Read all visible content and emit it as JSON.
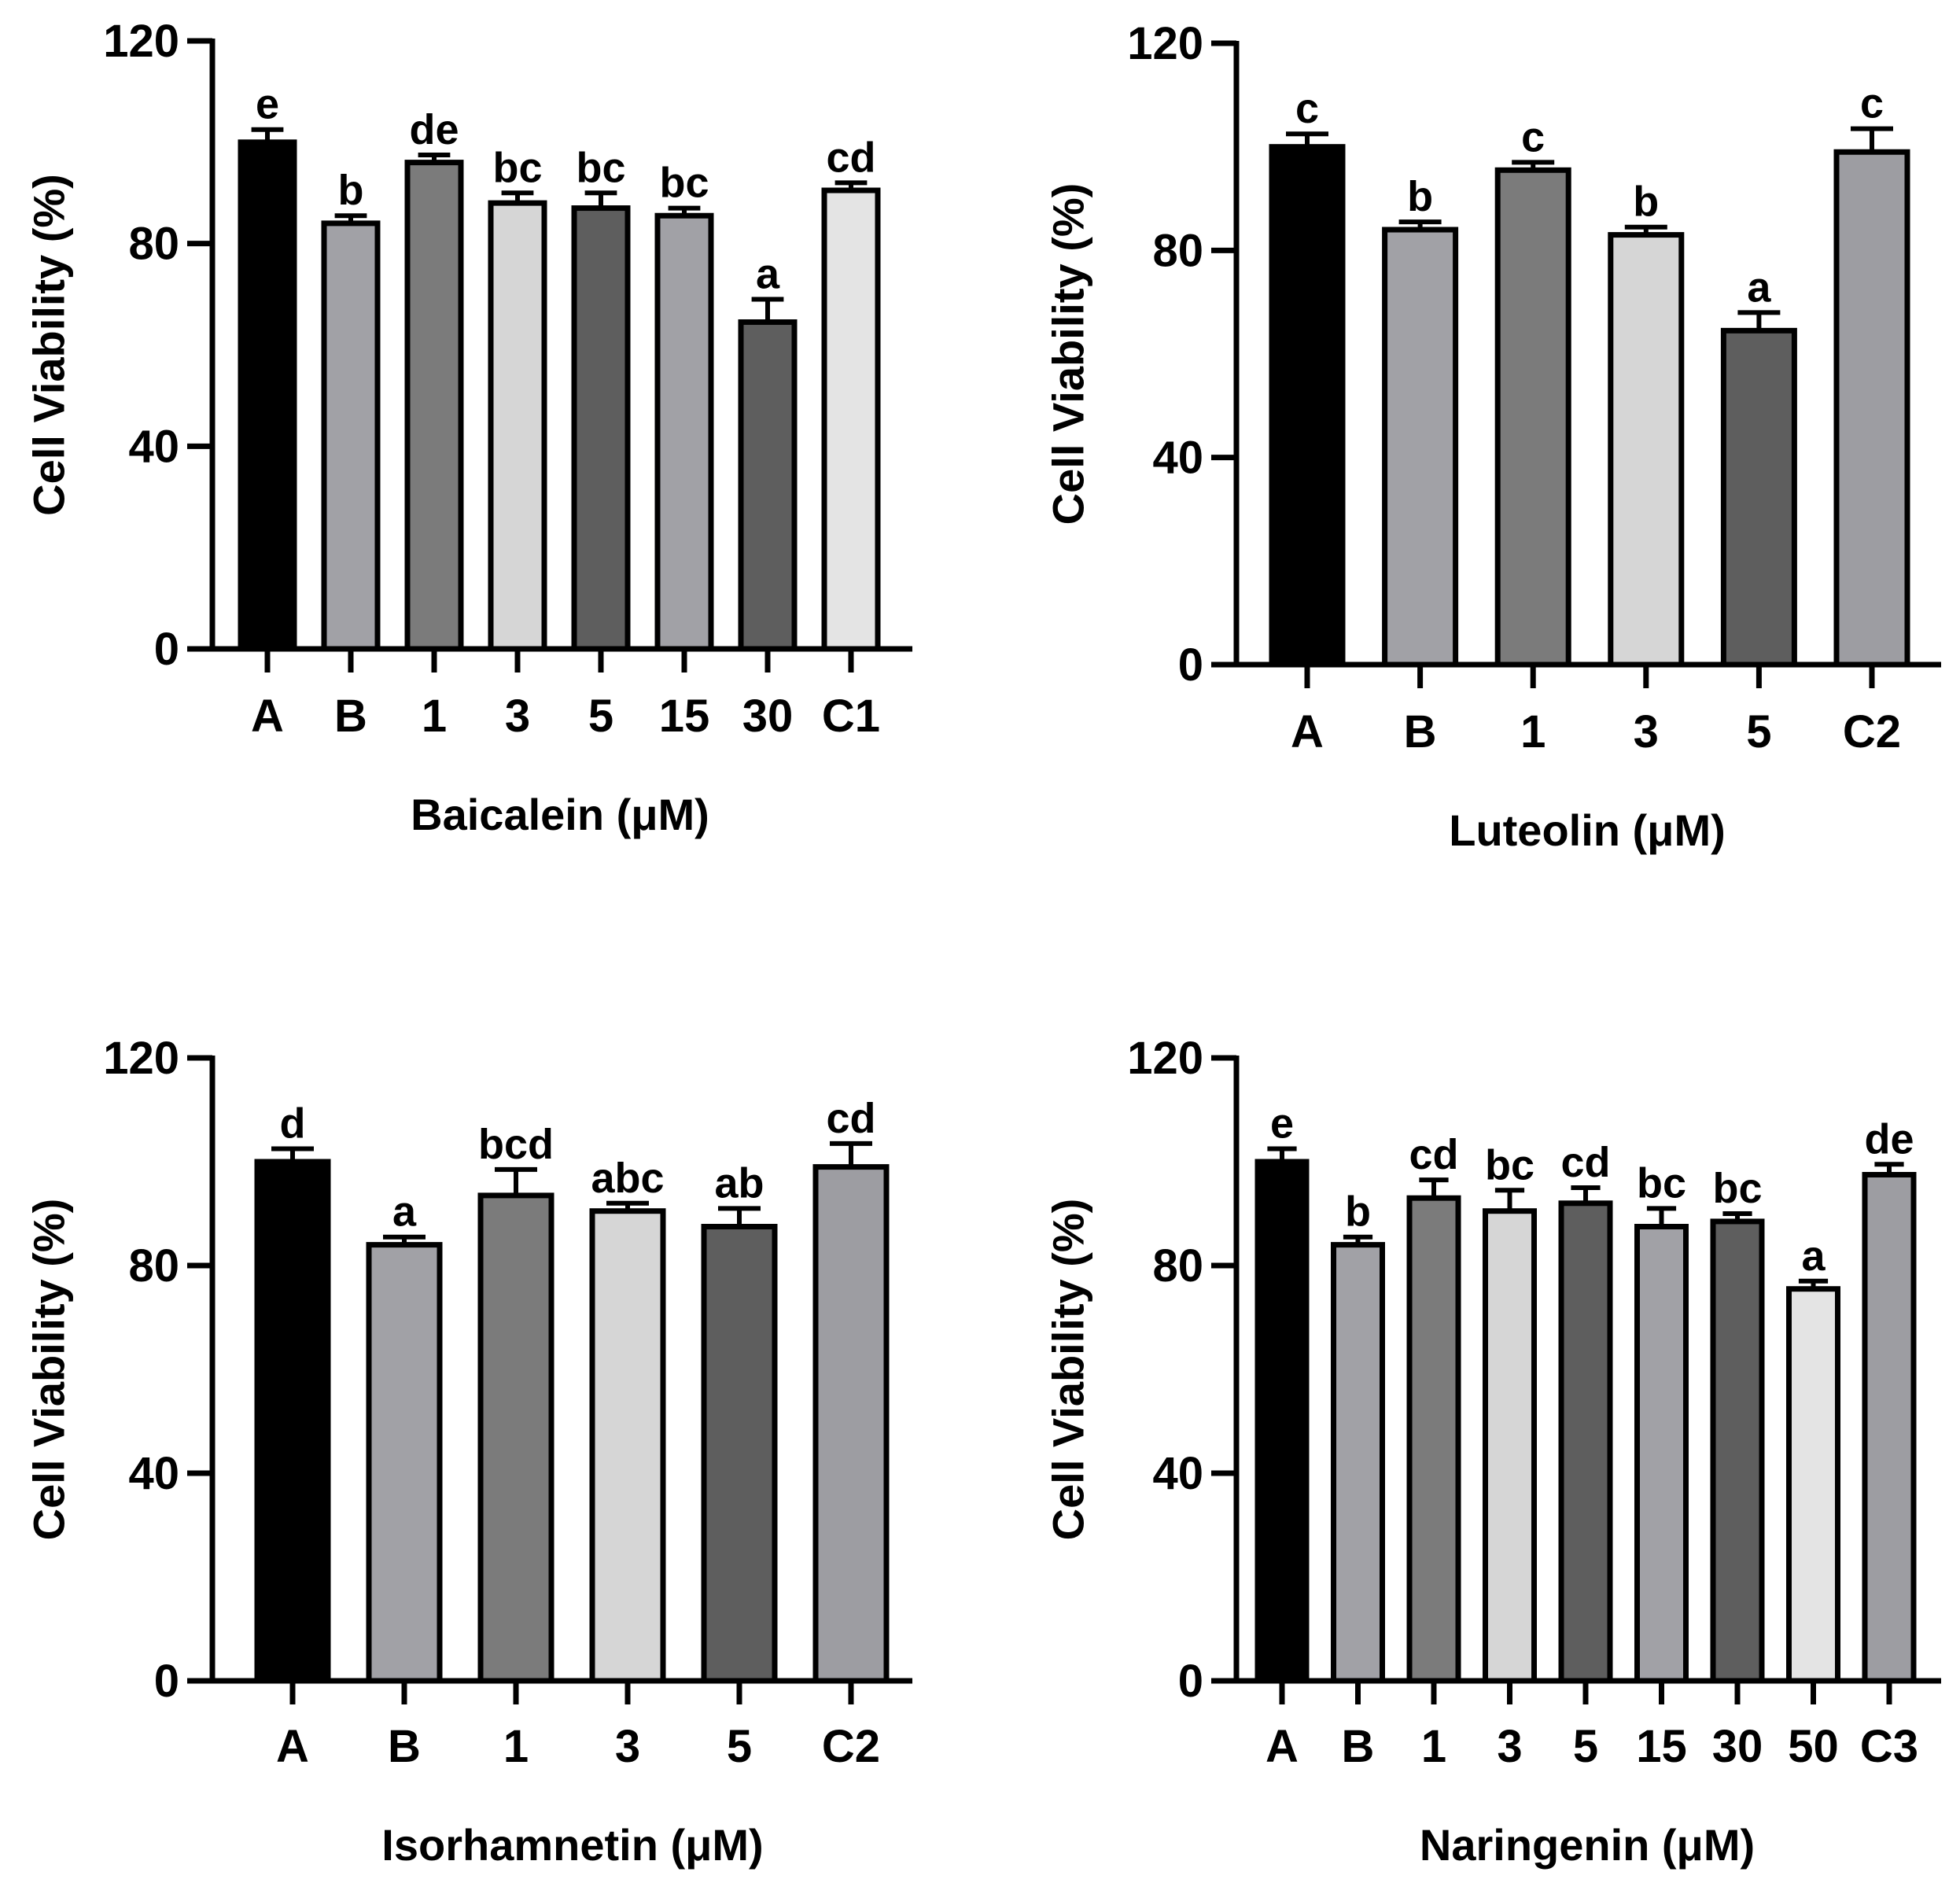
{
  "chart_data": [
    {
      "type": "bar",
      "ylabel": "Cell Viability (%)",
      "xlabel": "Baicalein (μM)",
      "ylim": [
        0,
        120
      ],
      "yticks": [
        0,
        40,
        80,
        120
      ],
      "categories": [
        "A",
        "B",
        "1",
        "3",
        "5",
        "15",
        "30",
        "C1"
      ],
      "values": [
        100,
        84,
        96,
        88,
        87,
        85.5,
        64.5,
        90.5
      ],
      "errors": [
        2.5,
        1.5,
        1.5,
        2,
        3,
        1.5,
        4.5,
        1.5
      ],
      "labels": [
        "e",
        "b",
        "de",
        "bc",
        "bc",
        "bc",
        "a",
        "cd"
      ],
      "colors": [
        "#000000",
        "#a1a1a6",
        "#7b7b7b",
        "#d6d6d6",
        "#5e5e5e",
        "#a1a1a6",
        "#5e5e5e",
        "#e4e4e4"
      ]
    },
    {
      "type": "bar",
      "ylabel": "Cell Viability (%)",
      "xlabel": "Luteolin (μM)",
      "ylim": [
        0,
        120
      ],
      "yticks": [
        0,
        40,
        80,
        120
      ],
      "categories": [
        "A",
        "B",
        "1",
        "3",
        "5",
        "C2"
      ],
      "values": [
        100,
        84,
        95.5,
        83,
        64.5,
        99
      ],
      "errors": [
        2.5,
        1.5,
        1.5,
        1.5,
        3.5,
        4.5
      ],
      "labels": [
        "c",
        "b",
        "c",
        "b",
        "a",
        "c"
      ],
      "colors": [
        "#000000",
        "#a1a1a6",
        "#7b7b7b",
        "#d6d6d6",
        "#5e5e5e",
        "#9d9da2"
      ]
    },
    {
      "type": "bar",
      "ylabel": "Cell Viability (%)",
      "xlabel": "Isorhamnetin (μM)",
      "ylim": [
        0,
        120
      ],
      "yticks": [
        0,
        40,
        80,
        120
      ],
      "categories": [
        "A",
        "B",
        "1",
        "3",
        "5",
        "C2"
      ],
      "values": [
        100,
        84,
        93.5,
        90.5,
        87.5,
        99
      ],
      "errors": [
        2.5,
        1.5,
        5,
        1.5,
        3.5,
        4.5
      ],
      "labels": [
        "d",
        "a",
        "bcd",
        "abc",
        "ab",
        "cd"
      ],
      "colors": [
        "#000000",
        "#a1a1a6",
        "#7b7b7b",
        "#d6d6d6",
        "#5e5e5e",
        "#9d9da2"
      ]
    },
    {
      "type": "bar",
      "ylabel": "Cell Viability (%)",
      "xlabel": "Naringenin (μM)",
      "ylim": [
        0,
        120
      ],
      "yticks": [
        0,
        40,
        80,
        120
      ],
      "categories": [
        "A",
        "B",
        "1",
        "3",
        "5",
        "15",
        "30",
        "50",
        "C3"
      ],
      "values": [
        100,
        84,
        93,
        90.5,
        92,
        87.5,
        88.5,
        75.5,
        97.5
      ],
      "errors": [
        2.5,
        1.5,
        3.5,
        4,
        3,
        3.5,
        1.5,
        1.5,
        2
      ],
      "labels": [
        "e",
        "b",
        "cd",
        "bc",
        "cd",
        "bc",
        "bc",
        "a",
        "de"
      ],
      "colors": [
        "#000000",
        "#a1a1a6",
        "#7b7b7b",
        "#d6d6d6",
        "#5e5e5e",
        "#a1a1a6",
        "#5e5e5e",
        "#e4e4e4",
        "#9d9da2"
      ]
    }
  ]
}
